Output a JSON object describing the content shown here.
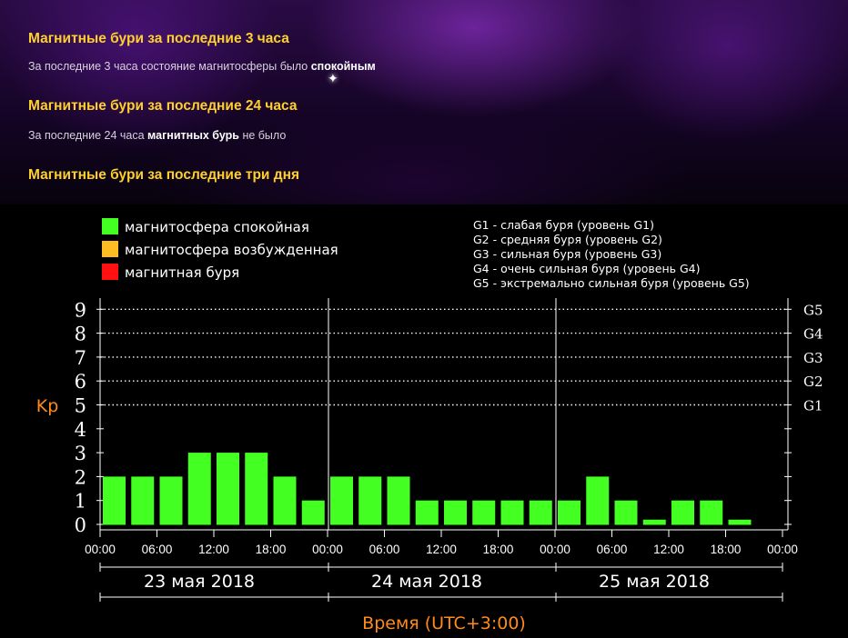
{
  "sections": [
    {
      "title": "Магнитные бури за последние 3 часа",
      "text_before": "За последние 3 часа состояние магнитосферы было ",
      "text_bold": "спокойным",
      "text_after": ""
    },
    {
      "title": "Магнитные бури за последние 24 часа",
      "text_before": "За последние 24 часа ",
      "text_bold": "магнитных бурь",
      "text_after": " не было"
    },
    {
      "title": "Магнитные бури за последние три дня"
    }
  ],
  "colors": {
    "calm": "#44ff22",
    "excited": "#ffbb22",
    "storm": "#ff1111",
    "title": "#ffd02b",
    "axis_label": "#ff8a1e"
  },
  "chart_data": {
    "type": "bar",
    "ylabel": "Kp",
    "xlabel": "Время (UTC+3:00)",
    "ylim": [
      0,
      9
    ],
    "y_ticks": [
      "0",
      "1",
      "2",
      "3",
      "4",
      "5",
      "6",
      "7",
      "8",
      "9"
    ],
    "grid_levels": [
      {
        "value": 5,
        "label": "G1"
      },
      {
        "value": 6,
        "label": "G2"
      },
      {
        "value": 7,
        "label": "G3"
      },
      {
        "value": 8,
        "label": "G4"
      },
      {
        "value": 9,
        "label": "G5"
      }
    ],
    "legend": [
      {
        "label": "магнитосфера спокойная",
        "color": "#44ff22"
      },
      {
        "label": "магнитосфера возбужденная",
        "color": "#ffbb22"
      },
      {
        "label": "магнитная буря",
        "color": "#ff1111"
      }
    ],
    "g_legend": [
      "G1 - слабая буря (уровень G1)",
      "G2 - средняя буря (уровень G2)",
      "G3 - сильная буря (уровень G3)",
      "G4 - очень сильная буря (уровень G4)",
      "G5 - экстремально сильная буря (уровень G5)"
    ],
    "days": [
      "23 мая 2018",
      "24 мая 2018",
      "25 мая 2018"
    ],
    "x_tick_labels": [
      "00:00",
      "06:00",
      "12:00",
      "18:00",
      "00:00",
      "06:00",
      "12:00",
      "18:00",
      "00:00",
      "06:00",
      "12:00",
      "18:00",
      "00:00"
    ],
    "values": [
      2,
      2,
      2,
      3,
      3,
      3,
      2,
      1,
      2,
      2,
      2,
      1,
      1,
      1,
      1,
      1,
      1,
      2,
      1,
      0.2,
      1,
      1,
      0.2
    ]
  }
}
